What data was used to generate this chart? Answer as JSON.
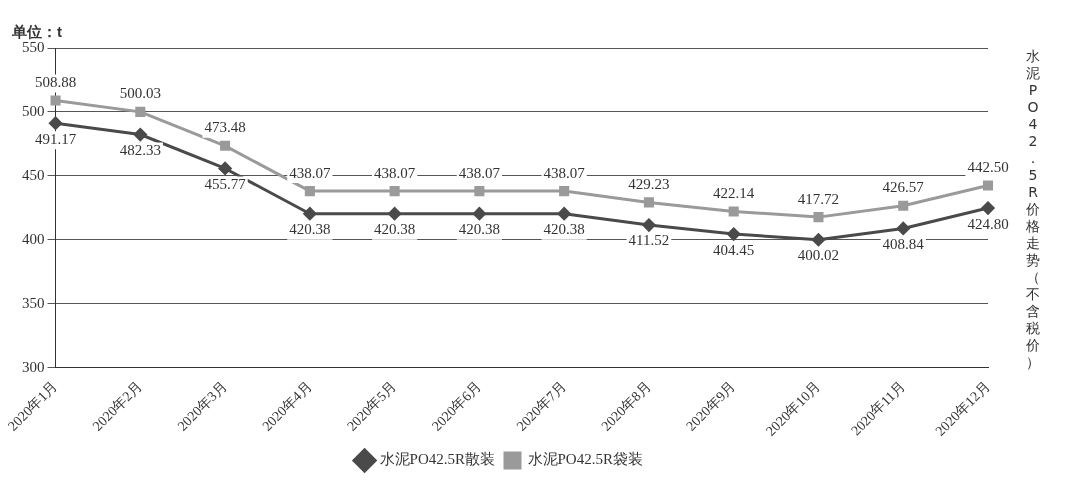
{
  "chart_data": {
    "type": "line",
    "title": "水泥PO42.5R价格走势（不含税价）",
    "ylabel": "单位：t",
    "categories": [
      "2020年1月",
      "2020年2月",
      "2020年3月",
      "2020年4月",
      "2020年5月",
      "2020年6月",
      "2020年7月",
      "2020年8月",
      "2020年9月",
      "2020年10月",
      "2020年11月",
      "2020年12月"
    ],
    "series": [
      {
        "name": "水泥PO42.5R散装",
        "color": "#4a4a4a",
        "marker": "diamond",
        "values": [
          491.17,
          482.33,
          455.77,
          420.38,
          420.38,
          420.38,
          420.38,
          411.52,
          404.45,
          400.02,
          408.84,
          424.8
        ],
        "value_labels": [
          "491.17",
          "482.33",
          "455.77",
          "420.38",
          "420.38",
          "420.38",
          "420.38",
          "411.52",
          "404.45",
          "400.02",
          "408.84",
          "424.80"
        ]
      },
      {
        "name": "水泥PO42.5R袋装",
        "color": "#9a9a9a",
        "marker": "square",
        "values": [
          508.88,
          500.03,
          473.48,
          438.07,
          438.07,
          438.07,
          438.07,
          429.23,
          422.14,
          417.72,
          426.57,
          442.5
        ],
        "value_labels": [
          "508.88",
          "500.03",
          "473.48",
          "438.07",
          "438.07",
          "438.07",
          "438.07",
          "429.23",
          "422.14",
          "417.72",
          "426.57",
          "442.50"
        ]
      }
    ],
    "ylim": [
      300,
      550
    ],
    "yticks": [
      300,
      350,
      400,
      450,
      500,
      550
    ],
    "grid": "y",
    "legend": "bottom",
    "line_style": "solid"
  }
}
